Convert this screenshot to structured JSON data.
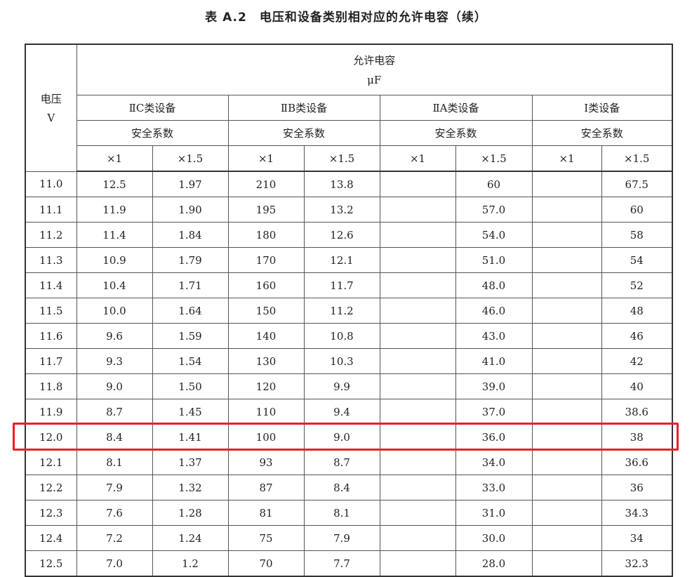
{
  "title": "表 A.2　电压和设备类别相对应的允许电容（续）",
  "header": {
    "voltage_label": "电压",
    "voltage_unit": "V",
    "capacitance_label": "允许电容",
    "capacitance_unit": "μF",
    "groups": [
      "ⅡC类设备",
      "ⅡB类设备",
      "ⅡA类设备",
      "Ⅰ类设备"
    ],
    "safety_factor_label": "安全系数",
    "factors": [
      "×1",
      "×1.5"
    ]
  },
  "rows": [
    [
      "11.0",
      "12.5",
      "1.97",
      "210",
      "13.8",
      "",
      "60",
      "",
      "67.5"
    ],
    [
      "11.1",
      "11.9",
      "1.90",
      "195",
      "13.2",
      "",
      "57.0",
      "",
      "60"
    ],
    [
      "11.2",
      "11.4",
      "1.84",
      "180",
      "12.6",
      "",
      "54.0",
      "",
      "58"
    ],
    [
      "11.3",
      "10.9",
      "1.79",
      "170",
      "12.1",
      "",
      "51.0",
      "",
      "54"
    ],
    [
      "11.4",
      "10.4",
      "1.71",
      "160",
      "11.7",
      "",
      "48.0",
      "",
      "52"
    ],
    [
      "11.5",
      "10.0",
      "1.64",
      "150",
      "11.2",
      "",
      "46.0",
      "",
      "48"
    ],
    [
      "11.6",
      "9.6",
      "1.59",
      "140",
      "10.8",
      "",
      "43.0",
      "",
      "46"
    ],
    [
      "11.7",
      "9.3",
      "1.54",
      "130",
      "10.3",
      "",
      "41.0",
      "",
      "42"
    ],
    [
      "11.8",
      "9.0",
      "1.50",
      "120",
      "9.9",
      "",
      "39.0",
      "",
      "40"
    ],
    [
      "11.9",
      "8.7",
      "1.45",
      "110",
      "9.4",
      "",
      "37.0",
      "",
      "38.6"
    ],
    [
      "12.0",
      "8.4",
      "1.41",
      "100",
      "9.0",
      "",
      "36.0",
      "",
      "38"
    ],
    [
      "12.1",
      "8.1",
      "1.37",
      "93",
      "8.7",
      "",
      "34.0",
      "",
      "36.6"
    ],
    [
      "12.2",
      "7.9",
      "1.32",
      "87",
      "8.4",
      "",
      "33.0",
      "",
      "36"
    ],
    [
      "12.3",
      "7.6",
      "1.28",
      "81",
      "8.1",
      "",
      "31.0",
      "",
      "34.3"
    ],
    [
      "12.4",
      "7.2",
      "1.24",
      "75",
      "7.9",
      "",
      "30.0",
      "",
      "34"
    ],
    [
      "12.5",
      "7.0",
      "1.2",
      "70",
      "7.7",
      "",
      "28.0",
      "",
      "32.3"
    ]
  ],
  "highlighted_row_voltage": "12.0",
  "highlight_color": "#e8202a"
}
